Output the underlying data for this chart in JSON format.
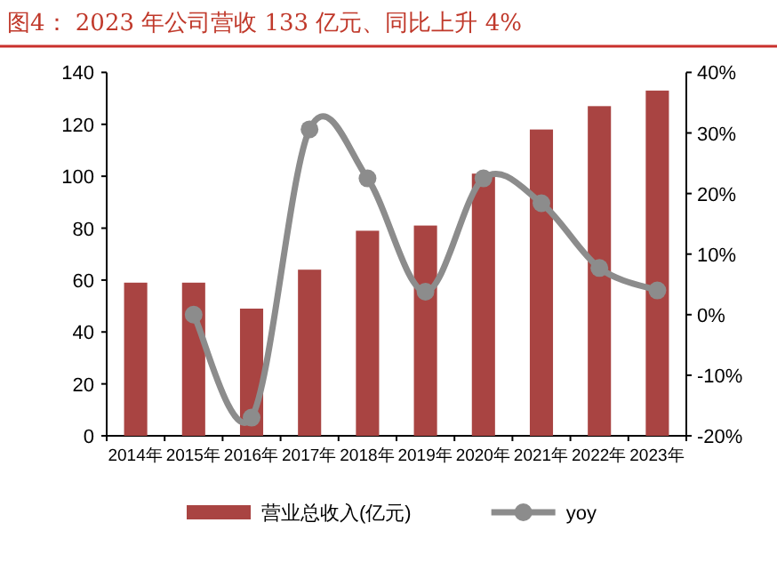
{
  "chart_data": {
    "type": "bar",
    "title": "图4：  2023 年公司营收 133 亿元、同比上升 4%",
    "categories": [
      "2014年",
      "2015年",
      "2016年",
      "2017年",
      "2018年",
      "2019年",
      "2020年",
      "2021年",
      "2022年",
      "2023年"
    ],
    "series": [
      {
        "name": "营业总收入(亿元)",
        "color": "#a94442",
        "values": [
          59,
          59,
          49,
          64,
          79,
          81,
          101,
          118,
          127,
          133
        ]
      },
      {
        "name": "yoy",
        "type": "line",
        "axis": "y2",
        "color": "#8c8c8c",
        "marker": "circle",
        "values": [
          null,
          0,
          -17,
          30.6,
          22.5,
          3.8,
          22.5,
          18.4,
          7.7,
          4.0
        ]
      }
    ],
    "ylim": [
      0,
      140
    ],
    "yticks": [
      0,
      20,
      40,
      60,
      80,
      100,
      120,
      140
    ],
    "y2lim": [
      -20,
      40
    ],
    "y2ticks": [
      {
        "value": -20,
        "label": "-20%"
      },
      {
        "value": -10,
        "label": "-10%"
      },
      {
        "value": 0,
        "label": "0%"
      },
      {
        "value": 10,
        "label": "10%"
      },
      {
        "value": 20,
        "label": "20%"
      },
      {
        "value": 30,
        "label": "30%"
      },
      {
        "value": 40,
        "label": "40%"
      }
    ],
    "grid": false,
    "legend": "bottom"
  }
}
